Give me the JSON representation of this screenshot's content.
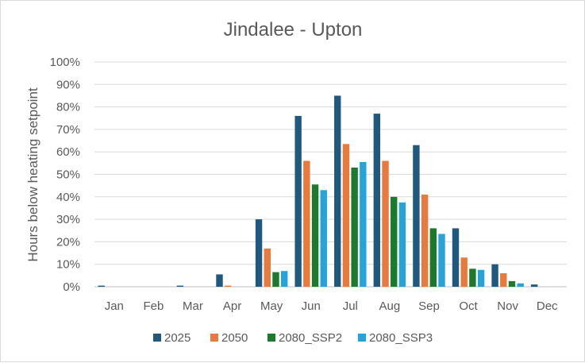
{
  "chart_data": {
    "type": "bar",
    "title": "Jindalee - Upton",
    "xlabel": "",
    "ylabel": "Hours below heating setpoint",
    "categories": [
      "Jan",
      "Feb",
      "Mar",
      "Apr",
      "May",
      "Jun",
      "Jul",
      "Aug",
      "Sep",
      "Oct",
      "Nov",
      "Dec"
    ],
    "ylim": [
      0,
      100
    ],
    "y_ticks": [
      "0%",
      "10%",
      "20%",
      "30%",
      "40%",
      "50%",
      "60%",
      "70%",
      "80%",
      "90%",
      "100%"
    ],
    "y_unit": "percent",
    "grid": true,
    "legend_position": "bottom",
    "series": [
      {
        "name": "2025",
        "color": "#1f5a7e",
        "values": [
          0.5,
          0,
          0.5,
          5.5,
          30,
          76,
          85,
          77,
          63,
          26,
          10,
          1
        ]
      },
      {
        "name": "2050",
        "color": "#e87a3d",
        "values": [
          0,
          0,
          0,
          0.5,
          17,
          56,
          63.5,
          56,
          41,
          13,
          6,
          0
        ]
      },
      {
        "name": "2080_SSP2",
        "color": "#1c7a2c",
        "values": [
          0,
          0,
          0,
          0,
          6.5,
          45.5,
          53,
          40,
          26,
          8,
          2.5,
          0
        ]
      },
      {
        "name": "2080_SSP3",
        "color": "#26a3d8",
        "values": [
          0,
          0,
          0,
          0,
          7,
          43,
          55.5,
          37.5,
          23.5,
          7.5,
          1.5,
          0
        ]
      }
    ]
  }
}
